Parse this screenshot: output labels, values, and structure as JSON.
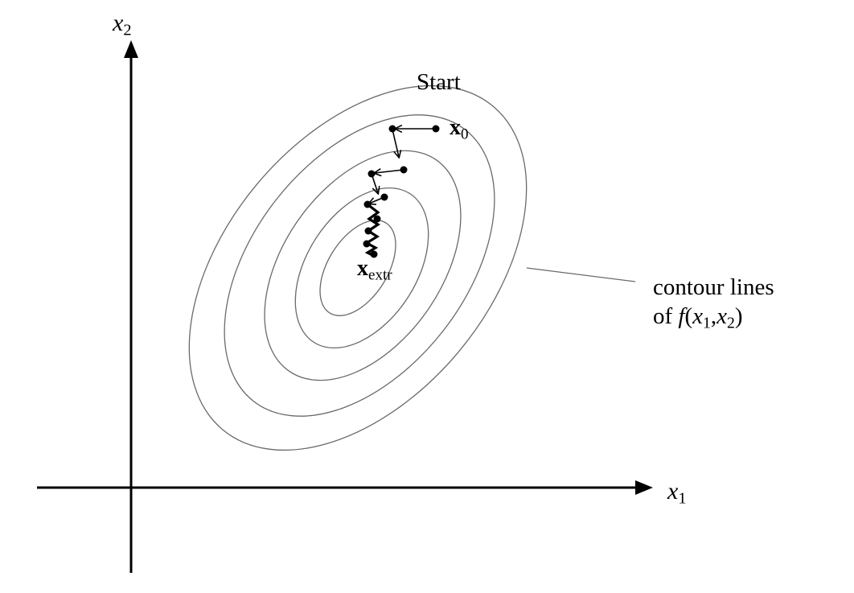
{
  "axes": {
    "x_axis": {
      "var": "x",
      "sub": "1"
    },
    "y_axis": {
      "var": "x",
      "sub": "2"
    }
  },
  "labels": {
    "start": "Start",
    "x0": {
      "var": "x",
      "sub": "0"
    },
    "x_extr": {
      "var": "x",
      "sub": "extr"
    },
    "contour_line1": "contour lines",
    "contour_line2_prefix": "of ",
    "contour_func": "f",
    "contour_open": "(",
    "contour_v1": "x",
    "contour_v1_sub": "1",
    "contour_comma": ",",
    "contour_v2": "x",
    "contour_v2_sub": "2",
    "contour_close": ")"
  },
  "colors": {
    "contour": "#6a6a6a",
    "axis": "#000000",
    "path": "#000000"
  }
}
